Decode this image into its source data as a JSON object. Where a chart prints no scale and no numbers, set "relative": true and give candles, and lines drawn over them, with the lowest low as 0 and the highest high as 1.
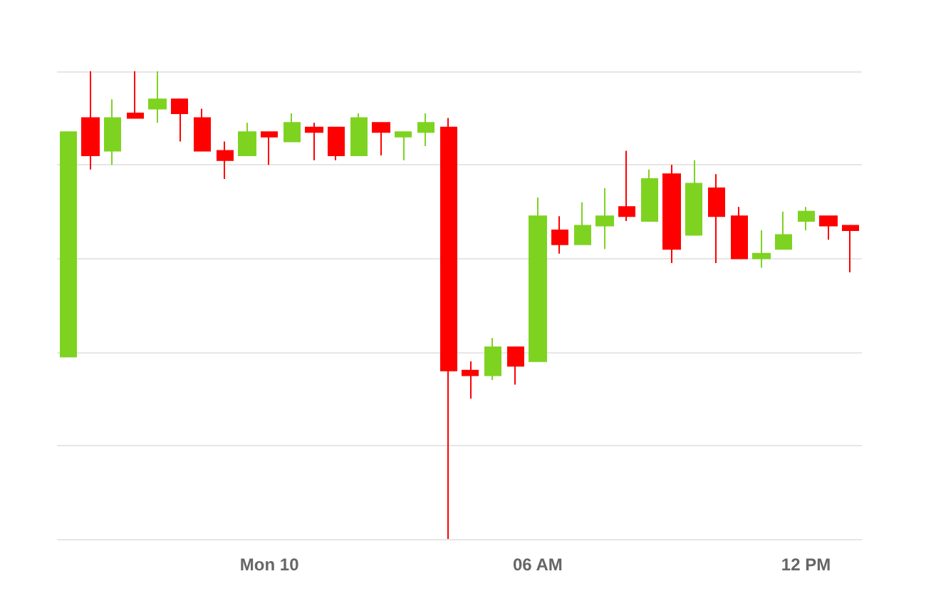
{
  "chart_data": {
    "type": "candlestick",
    "relative": true,
    "grid": "y",
    "categories": [
      null,
      null,
      null,
      null,
      null,
      null,
      null,
      null,
      null,
      "Mon 10",
      null,
      null,
      null,
      null,
      null,
      null,
      null,
      null,
      null,
      null,
      null,
      "06 AM",
      null,
      null,
      null,
      null,
      null,
      null,
      null,
      null,
      null,
      null,
      null,
      "12 PM",
      null,
      null
    ],
    "series": [
      {
        "colors": [
          "#7ed321",
          "#ff0000",
          "#7ed321",
          "#ff0000",
          "#7ed321",
          "#ff0000",
          "#ff0000",
          "#ff0000",
          "#7ed321",
          "#ff0000",
          "#7ed321",
          "#ff0000",
          "#ff0000",
          "#7ed321",
          "#ff0000",
          "#7ed321",
          "#7ed321",
          "#ff0000",
          "#ff0000",
          "#7ed321",
          "#ff0000",
          "#7ed321",
          "#ff0000",
          "#7ed321",
          "#7ed321",
          "#ff0000",
          "#7ed321",
          "#ff0000",
          "#7ed321",
          "#ff0000",
          "#ff0000",
          "#7ed321",
          "#7ed321",
          "#7ed321",
          "#ff0000",
          "#ff0000"
        ],
        "ohlc": [
          [
            0.39,
            0.87,
            0.39,
            0.87
          ],
          [
            0.9,
            1.0,
            0.79,
            0.82
          ],
          [
            0.83,
            0.94,
            0.8,
            0.9
          ],
          [
            0.91,
            1.0,
            0.9,
            0.9
          ],
          [
            0.92,
            1.0,
            0.89,
            0.94
          ],
          [
            0.94,
            0.94,
            0.85,
            0.91
          ],
          [
            0.9,
            0.92,
            0.83,
            0.83
          ],
          [
            0.83,
            0.85,
            0.77,
            0.81
          ],
          [
            0.82,
            0.89,
            0.82,
            0.87
          ],
          [
            0.87,
            0.87,
            0.8,
            0.86
          ],
          [
            0.85,
            0.91,
            0.85,
            0.89
          ],
          [
            0.88,
            0.89,
            0.81,
            0.87
          ],
          [
            0.88,
            0.88,
            0.81,
            0.82
          ],
          [
            0.82,
            0.91,
            0.82,
            0.9
          ],
          [
            0.89,
            0.89,
            0.82,
            0.87
          ],
          [
            0.86,
            0.87,
            0.81,
            0.87
          ],
          [
            0.87,
            0.91,
            0.84,
            0.89
          ],
          [
            0.88,
            0.9,
            0,
            0.36
          ],
          [
            0.36,
            0.38,
            0.3,
            0.35
          ],
          [
            0.35,
            0.43,
            0.34,
            0.41
          ],
          [
            0.41,
            0.41,
            0.33,
            0.37
          ],
          [
            0.38,
            0.73,
            0.38,
            0.69
          ],
          [
            0.66,
            0.69,
            0.61,
            0.63
          ],
          [
            0.63,
            0.72,
            0.63,
            0.67
          ],
          [
            0.67,
            0.75,
            0.62,
            0.69
          ],
          [
            0.71,
            0.83,
            0.68,
            0.69
          ],
          [
            0.68,
            0.79,
            0.68,
            0.77
          ],
          [
            0.78,
            0.8,
            0.59,
            0.62
          ],
          [
            0.65,
            0.81,
            0.65,
            0.76
          ],
          [
            0.75,
            0.78,
            0.59,
            0.69
          ],
          [
            0.69,
            0.71,
            0.6,
            0.6
          ],
          [
            0.6,
            0.66,
            0.58,
            0.61
          ],
          [
            0.62,
            0.7,
            0.62,
            0.65
          ],
          [
            0.68,
            0.71,
            0.66,
            0.7
          ],
          [
            0.69,
            0.69,
            0.64,
            0.67
          ],
          [
            0.67,
            0.67,
            0.57,
            0.66
          ]
        ]
      }
    ]
  }
}
